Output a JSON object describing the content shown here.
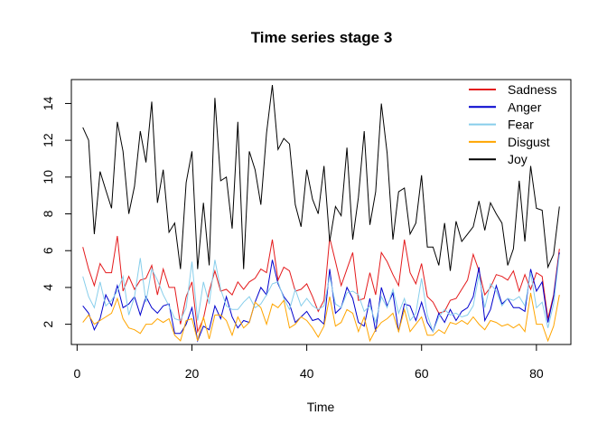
{
  "chart_data": {
    "type": "line",
    "title": "Time series stage 3",
    "xlabel": "Time",
    "ylabel": "",
    "xlim": [
      -1,
      86
    ],
    "ylim": [
      0.9,
      15.3
    ],
    "x_ticks": [
      0,
      20,
      40,
      60,
      80
    ],
    "y_ticks": [
      2,
      4,
      6,
      8,
      10,
      12,
      14
    ],
    "legend_position": "top-right",
    "grid": false,
    "x": [
      1,
      2,
      3,
      4,
      5,
      6,
      7,
      8,
      9,
      10,
      11,
      12,
      13,
      14,
      15,
      16,
      17,
      18,
      19,
      20,
      21,
      22,
      23,
      24,
      25,
      26,
      27,
      28,
      29,
      30,
      31,
      32,
      33,
      34,
      35,
      36,
      37,
      38,
      39,
      40,
      41,
      42,
      43,
      44,
      45,
      46,
      47,
      48,
      49,
      50,
      51,
      52,
      53,
      54,
      55,
      56,
      57,
      58,
      59,
      60,
      61,
      62,
      63,
      64,
      65,
      66,
      67,
      68,
      69,
      70,
      71,
      72,
      73,
      74,
      75,
      76,
      77,
      78,
      79,
      80,
      81,
      82,
      83,
      84
    ],
    "series": [
      {
        "name": "Sadness",
        "color": "#E41A1C",
        "values": [
          6.2,
          5.0,
          4.1,
          5.3,
          4.8,
          4.8,
          6.8,
          3.8,
          4.6,
          3.9,
          4.4,
          4.5,
          5.2,
          3.6,
          5.0,
          4.0,
          4.0,
          2.0,
          3.5,
          4.3,
          1.6,
          2.3,
          3.8,
          4.9,
          3.8,
          3.9,
          3.6,
          4.3,
          3.9,
          4.3,
          4.5,
          5.0,
          4.8,
          6.6,
          4.4,
          5.1,
          4.9,
          3.8,
          3.9,
          4.2,
          3.5,
          2.7,
          3.3,
          6.7,
          5.4,
          4.1,
          5.0,
          5.9,
          3.3,
          3.4,
          4.8,
          3.6,
          5.9,
          5.4,
          4.7,
          4.1,
          6.6,
          4.8,
          4.2,
          5.3,
          3.5,
          3.2,
          2.6,
          2.7,
          3.3,
          3.4,
          3.9,
          4.4,
          5.8,
          4.9,
          3.6,
          4.0,
          4.7,
          4.6,
          4.4,
          4.9,
          3.8,
          4.7,
          3.9,
          4.8,
          4.6,
          2.3,
          3.6,
          6.1
        ]
      },
      {
        "name": "Anger",
        "color": "#0000CD",
        "values": [
          3.0,
          2.6,
          1.7,
          2.3,
          3.6,
          3.0,
          4.1,
          2.9,
          3.1,
          3.5,
          2.5,
          3.5,
          2.9,
          2.6,
          3.0,
          3.1,
          1.5,
          1.5,
          2.0,
          2.9,
          1.1,
          1.9,
          1.7,
          3.0,
          2.3,
          3.5,
          2.4,
          1.8,
          2.2,
          2.1,
          3.2,
          4.0,
          3.6,
          5.5,
          4.2,
          3.5,
          3.1,
          2.1,
          2.4,
          2.7,
          2.2,
          2.3,
          2.0,
          5.0,
          2.6,
          2.9,
          4.0,
          3.4,
          2.1,
          1.9,
          3.4,
          1.6,
          4.0,
          3.0,
          3.7,
          1.6,
          3.1,
          3.0,
          2.2,
          3.2,
          2.1,
          1.6,
          2.6,
          2.1,
          2.8,
          2.2,
          2.7,
          2.9,
          3.5,
          5.1,
          2.2,
          2.8,
          4.1,
          3.1,
          3.4,
          2.9,
          2.9,
          2.7,
          5.0,
          3.8,
          4.3,
          2.1,
          3.5,
          5.9
        ]
      },
      {
        "name": "Fear",
        "color": "#87CEEB",
        "values": [
          4.6,
          3.5,
          2.9,
          4.3,
          3.0,
          3.3,
          3.8,
          4.6,
          2.5,
          3.5,
          5.6,
          3.2,
          5.0,
          4.4,
          3.6,
          3.0,
          2.3,
          2.2,
          2.9,
          5.4,
          2.2,
          4.3,
          3.1,
          5.5,
          3.9,
          3.0,
          2.8,
          2.8,
          3.2,
          3.5,
          2.9,
          3.1,
          3.6,
          4.2,
          4.3,
          3.4,
          2.8,
          3.9,
          3.0,
          3.4,
          3.0,
          2.8,
          3.0,
          4.6,
          3.1,
          2.9,
          3.7,
          3.8,
          3.6,
          2.7,
          3.0,
          2.1,
          3.5,
          2.9,
          3.9,
          2.6,
          3.4,
          2.2,
          2.6,
          4.5,
          2.5,
          1.6,
          2.4,
          2.8,
          2.5,
          2.6,
          2.4,
          2.5,
          3.0,
          4.7,
          2.9,
          4.2,
          3.8,
          3.0,
          3.4,
          3.3,
          3.5,
          3.0,
          4.8,
          2.9,
          3.2,
          1.8,
          3.1,
          5.8
        ]
      },
      {
        "name": "Disgust",
        "color": "#FFA500",
        "values": [
          2.1,
          2.5,
          2.0,
          2.2,
          2.4,
          2.6,
          3.4,
          2.3,
          1.8,
          1.7,
          1.5,
          2.0,
          2.0,
          2.3,
          2.1,
          2.3,
          1.4,
          1.1,
          2.2,
          2.3,
          1.1,
          2.4,
          1.2,
          2.5,
          2.5,
          2.2,
          1.4,
          2.4,
          1.8,
          2.1,
          3.2,
          2.9,
          2.0,
          3.1,
          2.9,
          3.3,
          1.8,
          2.0,
          2.4,
          2.2,
          1.8,
          1.3,
          1.9,
          3.5,
          1.9,
          2.1,
          2.8,
          2.6,
          1.6,
          2.4,
          1.1,
          1.7,
          2.1,
          2.3,
          2.6,
          1.6,
          2.8,
          1.6,
          2.0,
          2.4,
          1.4,
          1.4,
          1.7,
          1.5,
          2.1,
          2.0,
          2.2,
          2.0,
          2.4,
          2.0,
          1.7,
          2.2,
          2.1,
          1.9,
          2.0,
          1.8,
          2.0,
          1.6,
          3.7,
          2.0,
          2.0,
          1.1,
          1.9,
          3.6
        ]
      },
      {
        "name": "Joy",
        "color": "#000000",
        "values": [
          12.7,
          12.0,
          6.9,
          10.3,
          9.3,
          8.3,
          13.0,
          11.4,
          8.0,
          9.5,
          12.5,
          10.8,
          14.1,
          8.6,
          10.4,
          7.0,
          7.5,
          5.0,
          9.7,
          11.4,
          5.0,
          8.6,
          5.2,
          14.3,
          9.8,
          10.0,
          7.2,
          13.0,
          5.0,
          11.4,
          10.4,
          8.5,
          12.4,
          15.0,
          11.5,
          12.1,
          11.8,
          8.5,
          7.3,
          10.4,
          8.8,
          8.0,
          10.6,
          6.5,
          8.4,
          7.9,
          11.6,
          6.6,
          8.9,
          12.5,
          7.4,
          9.2,
          14.0,
          11.3,
          6.6,
          9.2,
          9.4,
          6.9,
          7.5,
          10.1,
          6.2,
          6.2,
          5.2,
          7.5,
          4.9,
          7.6,
          6.5,
          6.9,
          7.3,
          8.7,
          7.1,
          8.6,
          8.0,
          7.5,
          5.2,
          6.1,
          9.8,
          6.5,
          10.6,
          8.3,
          8.2,
          5.1,
          5.8,
          8.4
        ]
      }
    ]
  }
}
